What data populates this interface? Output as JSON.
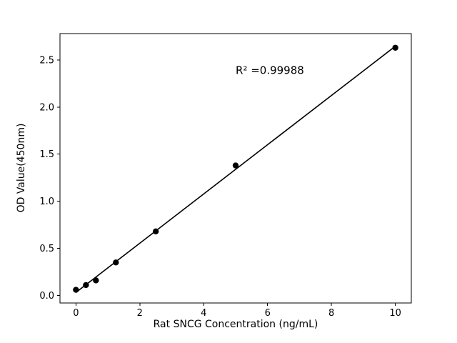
{
  "chart_data": {
    "type": "scatter",
    "title": "",
    "xlabel": "Rat SNCG Concentration (ng/mL)",
    "ylabel": "OD Value(450nm)",
    "points": {
      "x": [
        0,
        0.3125,
        0.625,
        1.25,
        2.5,
        5,
        10
      ],
      "y": [
        0.06,
        0.11,
        0.16,
        0.35,
        0.68,
        1.38,
        2.63
      ]
    },
    "fit_line": true,
    "annotation": {
      "text": "R² =0.99988",
      "x": 5.0,
      "y": 2.35
    },
    "xlim": [
      -0.5,
      10.5
    ],
    "ylim": [
      -0.08,
      2.78
    ],
    "xticks": [
      0,
      2,
      4,
      6,
      8,
      10
    ],
    "xtick_labels": [
      "0",
      "2",
      "4",
      "6",
      "8",
      "10"
    ],
    "yticks": [
      0.0,
      0.5,
      1.0,
      1.5,
      2.0,
      2.5
    ],
    "ytick_labels": [
      "0.0",
      "0.5",
      "1.0",
      "1.5",
      "2.0",
      "2.5"
    ],
    "grid": false,
    "legend": null,
    "marker_color": "#000000",
    "line_color": "#000000",
    "background_color": "#ffffff"
  }
}
